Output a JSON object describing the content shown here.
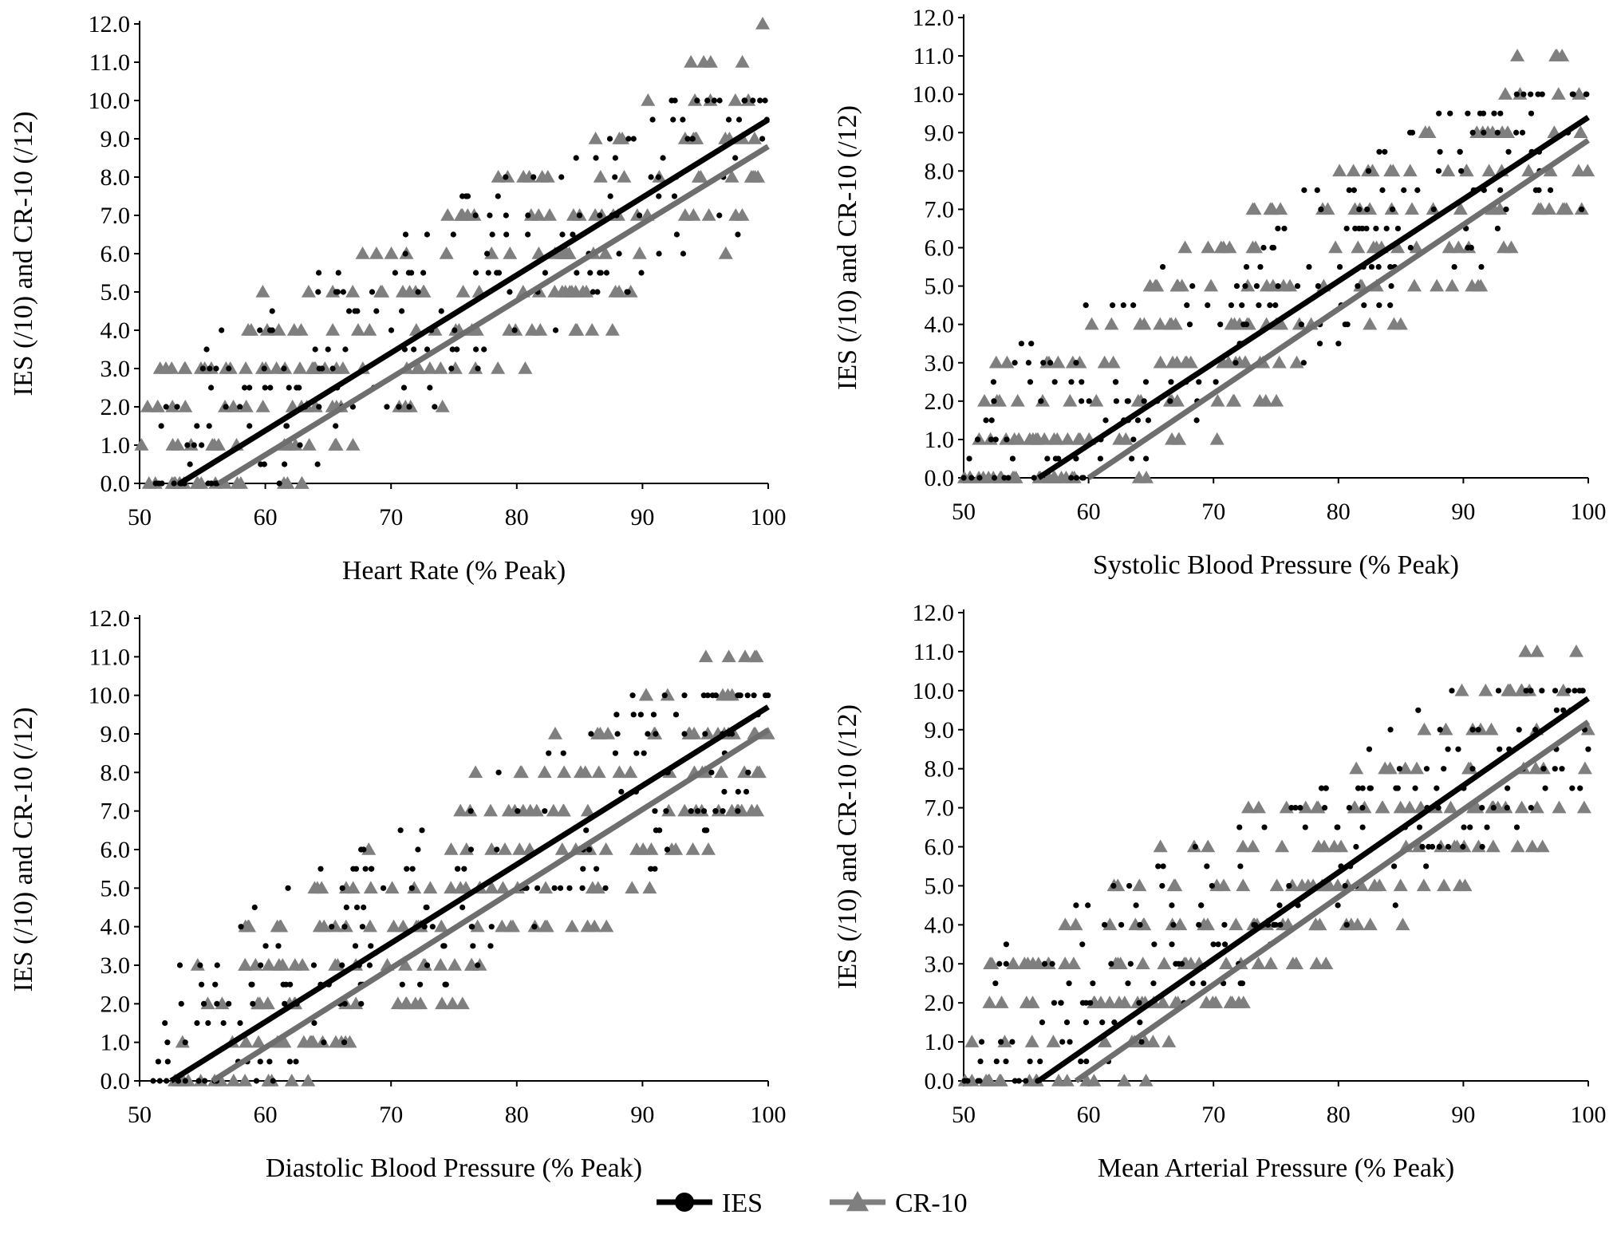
{
  "chart_data": [
    {
      "type": "scatter",
      "panel": "top-left",
      "xlabel": "Heart Rate (% Peak)",
      "ylabel": "IES (/10) and CR-10 (/12)",
      "xlim": [
        50,
        100
      ],
      "ylim": [
        0,
        12
      ],
      "xticks": [
        "50",
        "60",
        "70",
        "80",
        "90",
        "100"
      ],
      "yticks": [
        "0.0",
        "1.0",
        "2.0",
        "3.0",
        "4.0",
        "5.0",
        "6.0",
        "7.0",
        "8.0",
        "9.0",
        "10.0",
        "11.0",
        "12.0"
      ],
      "series": [
        {
          "name": "IES",
          "regression": {
            "x": [
              53.2,
              100
            ],
            "y": [
              0.0,
              9.5
            ]
          },
          "cloud": {
            "x_from": 51,
            "x_to": 100,
            "y_at_start": 0.5,
            "y_at_end": 9.5,
            "spread": 2.4,
            "step": 0.5,
            "count": 190
          }
        },
        {
          "name": "CR-10",
          "regression": {
            "x": [
              56.3,
              100
            ],
            "y": [
              0.0,
              8.8
            ]
          },
          "cloud": {
            "x_from": 50,
            "x_to": 100,
            "y_at_start": 0.3,
            "y_at_end": 9.2,
            "spread": 2.6,
            "step": 1.0,
            "count": 210
          }
        }
      ]
    },
    {
      "type": "scatter",
      "panel": "top-right",
      "xlabel": "Systolic Blood Pressure (% Peak)",
      "ylabel": "IES (/10) and CR-10 (/12)",
      "xlim": [
        50,
        100
      ],
      "ylim": [
        0,
        12
      ],
      "xticks": [
        "50",
        "60",
        "70",
        "80",
        "90",
        "100"
      ],
      "yticks": [
        "0.0",
        "1.0",
        "2.0",
        "3.0",
        "4.0",
        "5.0",
        "6.0",
        "7.0",
        "8.0",
        "9.0",
        "10.0",
        "11.0",
        "12.0"
      ],
      "series": [
        {
          "name": "IES",
          "regression": {
            "x": [
              56.0,
              100
            ],
            "y": [
              0.0,
              9.4
            ]
          },
          "cloud": {
            "x_from": 50,
            "x_to": 100,
            "y_at_start": 0.3,
            "y_at_end": 9.5,
            "spread": 2.3,
            "step": 0.5,
            "count": 190
          }
        },
        {
          "name": "CR-10",
          "regression": {
            "x": [
              60.0,
              100
            ],
            "y": [
              0.0,
              8.8
            ]
          },
          "cloud": {
            "x_from": 50,
            "x_to": 100,
            "y_at_start": 0.0,
            "y_at_end": 9.2,
            "spread": 2.5,
            "step": 1.0,
            "count": 210
          }
        }
      ]
    },
    {
      "type": "scatter",
      "panel": "bottom-left",
      "xlabel": "Diastolic Blood Pressure (% Peak)",
      "ylabel": "IES (/10) and CR-10 (/12)",
      "xlim": [
        50,
        100
      ],
      "ylim": [
        0,
        12
      ],
      "xticks": [
        "50",
        "60",
        "70",
        "80",
        "90",
        "100"
      ],
      "yticks": [
        "0.0",
        "1.0",
        "2.0",
        "3.0",
        "4.0",
        "5.0",
        "6.0",
        "7.0",
        "8.0",
        "9.0",
        "10.0",
        "11.0",
        "12.0"
      ],
      "series": [
        {
          "name": "IES",
          "regression": {
            "x": [
              52.5,
              100
            ],
            "y": [
              0.0,
              9.7
            ]
          },
          "cloud": {
            "x_from": 51,
            "x_to": 100,
            "y_at_start": 0.5,
            "y_at_end": 9.6,
            "spread": 2.4,
            "step": 0.5,
            "count": 190
          }
        },
        {
          "name": "CR-10",
          "regression": {
            "x": [
              55.8,
              100
            ],
            "y": [
              0.0,
              9.1
            ]
          },
          "cloud": {
            "x_from": 51,
            "x_to": 100,
            "y_at_start": 0.3,
            "y_at_end": 9.3,
            "spread": 2.6,
            "step": 1.0,
            "count": 210
          }
        }
      ]
    },
    {
      "type": "scatter",
      "panel": "bottom-right",
      "xlabel": "Mean Arterial Pressure (% Peak)",
      "ylabel": "IES (/10) and CR-10 (/12)",
      "xlim": [
        50,
        100
      ],
      "ylim": [
        0,
        12
      ],
      "xticks": [
        "50",
        "60",
        "70",
        "80",
        "90",
        "100"
      ],
      "yticks": [
        "0.0",
        "1.0",
        "2.0",
        "3.0",
        "4.0",
        "5.0",
        "6.0",
        "7.0",
        "8.0",
        "9.0",
        "10.0",
        "11.0",
        "12.0"
      ],
      "series": [
        {
          "name": "IES",
          "regression": {
            "x": [
              56.0,
              100
            ],
            "y": [
              0.0,
              9.8
            ]
          },
          "cloud": {
            "x_from": 50,
            "x_to": 100,
            "y_at_start": 0.5,
            "y_at_end": 9.6,
            "spread": 2.3,
            "step": 0.5,
            "count": 190
          }
        },
        {
          "name": "CR-10",
          "regression": {
            "x": [
              59.0,
              100
            ],
            "y": [
              0.0,
              9.2
            ]
          },
          "cloud": {
            "x_from": 50,
            "x_to": 100,
            "y_at_start": 0.3,
            "y_at_end": 9.3,
            "spread": 2.5,
            "step": 1.0,
            "count": 210
          }
        }
      ]
    }
  ],
  "legend": {
    "placement": "bottom-center",
    "items": [
      {
        "label": "IES",
        "marker": "circle",
        "color": "#000000"
      },
      {
        "label": "CR-10",
        "marker": "triangle",
        "color": "#7f7f7f"
      }
    ]
  },
  "colors": {
    "ies": "#000000",
    "cr10": "#7f7f7f",
    "ies_line": "#000000",
    "cr10_line": "#6e6e6e"
  }
}
